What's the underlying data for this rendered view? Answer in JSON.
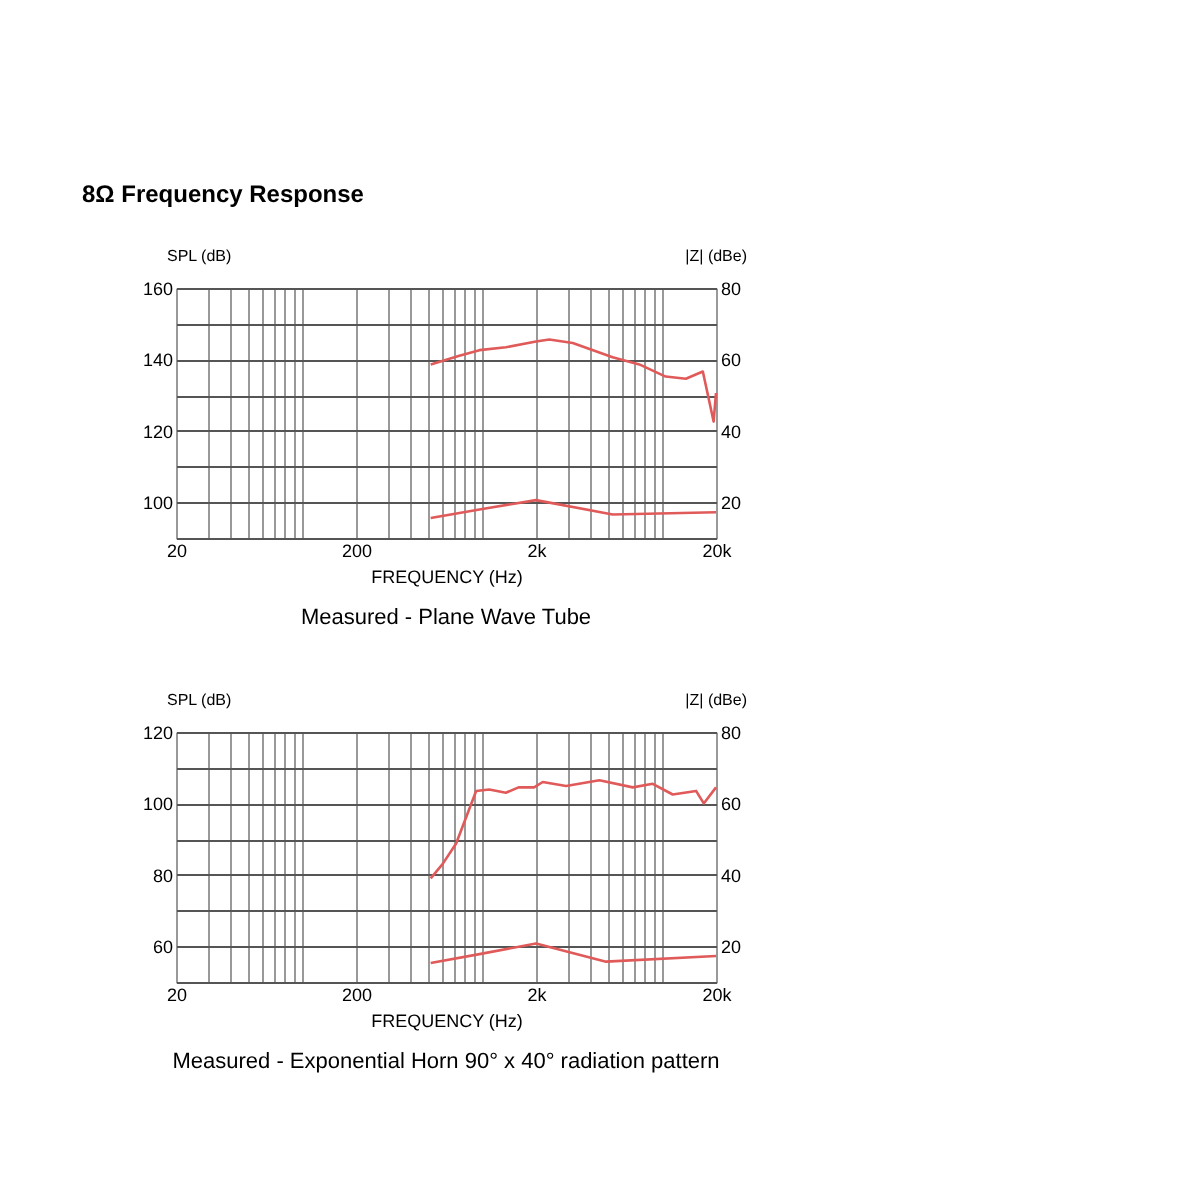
{
  "chart_data": [
    {
      "type": "line",
      "title": "8Ω Frequency Response",
      "xlabel": "FREQUENCY (Hz)",
      "ylabel": "SPL (dB)",
      "y2label": "|Z| (dBe)",
      "annotations": [
        "Measured - Plane Wave Tube"
      ],
      "log": "x",
      "grid": true,
      "marker": "none",
      "line_style": "solid",
      "xlim": [
        20,
        20000
      ],
      "xticks": [
        {
          "value": 20,
          "label": "20"
        },
        {
          "value": 30,
          "label": null
        },
        {
          "value": 40,
          "label": null
        },
        {
          "value": 50,
          "label": null
        },
        {
          "value": 60,
          "label": null
        },
        {
          "value": 70,
          "label": null
        },
        {
          "value": 80,
          "label": null
        },
        {
          "value": 90,
          "label": null
        },
        {
          "value": 100,
          "label": null
        },
        {
          "value": 200,
          "label": "200"
        },
        {
          "value": 300,
          "label": null
        },
        {
          "value": 400,
          "label": null
        },
        {
          "value": 500,
          "label": null
        },
        {
          "value": 600,
          "label": null
        },
        {
          "value": 700,
          "label": null
        },
        {
          "value": 800,
          "label": null
        },
        {
          "value": 900,
          "label": null
        },
        {
          "value": 1000,
          "label": null
        },
        {
          "value": 2000,
          "label": "2k"
        },
        {
          "value": 3000,
          "label": null
        },
        {
          "value": 4000,
          "label": null
        },
        {
          "value": 5000,
          "label": null
        },
        {
          "value": 6000,
          "label": null
        },
        {
          "value": 7000,
          "label": null
        },
        {
          "value": 8000,
          "label": null
        },
        {
          "value": 9000,
          "label": null
        },
        {
          "value": 10000,
          "label": null
        },
        {
          "value": 20000,
          "label": "20k"
        }
      ],
      "ylim": [
        90,
        160
      ],
      "yticks": [
        {
          "value": 90,
          "label": null
        },
        100,
        {
          "value": 110,
          "label": null
        },
        120,
        {
          "value": 130,
          "label": null
        },
        140,
        {
          "value": 150,
          "label": null
        },
        160
      ],
      "y2lim": [
        10,
        80
      ],
      "y2ticks": [
        20,
        40,
        60,
        80
      ],
      "series": [
        {
          "color": "#e05a5a",
          "x": [
            520,
            750,
            970,
            1360,
            2000,
            2370,
            3200,
            5330,
            7500,
            10500,
            13600,
            16900,
            19400,
            20000
          ],
          "values": [
            138.6,
            141,
            142.6,
            143.4,
            145,
            145.6,
            144.6,
            140.6,
            138.6,
            135.2,
            134.6,
            136.6,
            122.6,
            130.6
          ]
        },
        {
          "color": "#e05a5a",
          "axis": "y2",
          "x": [
            520,
            970,
            2000,
            5330,
            20000
          ],
          "values": [
            15.6,
            18,
            20.6,
            16.6,
            17.2
          ]
        }
      ]
    },
    {
      "type": "line",
      "xlabel": "FREQUENCY (Hz)",
      "ylabel": "SPL (dB)",
      "y2label": "|Z| (dBe)",
      "annotations": [
        "Measured - Exponential Horn 90° x 40° radiation pattern"
      ],
      "log": "x",
      "grid": true,
      "marker": "none",
      "line_style": "solid",
      "xlim": [
        20,
        20000
      ],
      "xticks": [
        {
          "value": 20,
          "label": "20"
        },
        {
          "value": 30,
          "label": null
        },
        {
          "value": 40,
          "label": null
        },
        {
          "value": 50,
          "label": null
        },
        {
          "value": 60,
          "label": null
        },
        {
          "value": 70,
          "label": null
        },
        {
          "value": 80,
          "label": null
        },
        {
          "value": 90,
          "label": null
        },
        {
          "value": 100,
          "label": null
        },
        {
          "value": 200,
          "label": "200"
        },
        {
          "value": 300,
          "label": null
        },
        {
          "value": 400,
          "label": null
        },
        {
          "value": 500,
          "label": null
        },
        {
          "value": 600,
          "label": null
        },
        {
          "value": 700,
          "label": null
        },
        {
          "value": 800,
          "label": null
        },
        {
          "value": 900,
          "label": null
        },
        {
          "value": 1000,
          "label": null
        },
        {
          "value": 2000,
          "label": "2k"
        },
        {
          "value": 3000,
          "label": null
        },
        {
          "value": 4000,
          "label": null
        },
        {
          "value": 5000,
          "label": null
        },
        {
          "value": 6000,
          "label": null
        },
        {
          "value": 7000,
          "label": null
        },
        {
          "value": 8000,
          "label": null
        },
        {
          "value": 9000,
          "label": null
        },
        {
          "value": 10000,
          "label": null
        },
        {
          "value": 20000,
          "label": "20k"
        }
      ],
      "ylim": [
        50,
        120
      ],
      "yticks": [
        {
          "value": 50,
          "label": null
        },
        60,
        {
          "value": 70,
          "label": null
        },
        80,
        {
          "value": 90,
          "label": null
        },
        100,
        {
          "value": 110,
          "label": null
        },
        120
      ],
      "y2lim": [
        10,
        80
      ],
      "y2ticks": [
        20,
        40,
        60,
        80
      ],
      "series": [
        {
          "color": "#e05a5a",
          "x": [
            520,
            605,
            720,
            930,
            1100,
            1360,
            1600,
            1950,
            2180,
            2940,
            4500,
            6900,
            8900,
            11500,
            15500,
            17100,
            20000
          ],
          "values": [
            79,
            83,
            88.8,
            103.5,
            103.9,
            103,
            104.5,
            104.5,
            106,
            104.9,
            106.5,
            104.5,
            105.5,
            102.5,
            103.5,
            100,
            104.5
          ]
        },
        {
          "color": "#e05a5a",
          "axis": "y2",
          "x": [
            520,
            970,
            2000,
            4900,
            20000
          ],
          "values": [
            15.3,
            17.8,
            20.8,
            15.7,
            17.3
          ]
        }
      ]
    }
  ]
}
